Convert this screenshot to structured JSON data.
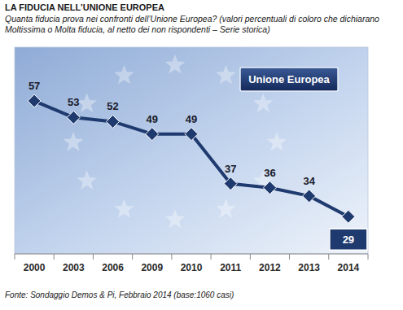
{
  "chart_data": {
    "type": "line",
    "title": "LA FIDUCIA NELL’UNIONE EUROPEA",
    "subtitle": "Quanta fiducia prova nei confronti dell’Unione Europea? (valori percentuali di coloro che dichiarano Moltissima o Molta fiducia, al netto dei non rispondenti – Serie storica)",
    "source": "Fonte: Sondaggio Demos & Pi, Febbraio 2014 (base:1060 casi)",
    "categories": [
      "2000",
      "2003",
      "2006",
      "2009",
      "2010",
      "2011",
      "2012",
      "2013",
      "2014"
    ],
    "series": [
      {
        "name": "Unione Europea",
        "color": "#1f3a6e",
        "marker": "diamond",
        "line_style": "solid",
        "values": [
          57,
          53,
          52,
          49,
          49,
          37,
          36,
          34,
          29
        ]
      }
    ],
    "ylim": [
      20,
      70
    ],
    "yticks": [],
    "grid": false,
    "legend": "top-right",
    "data_labels": true,
    "tick_labels": "x"
  }
}
